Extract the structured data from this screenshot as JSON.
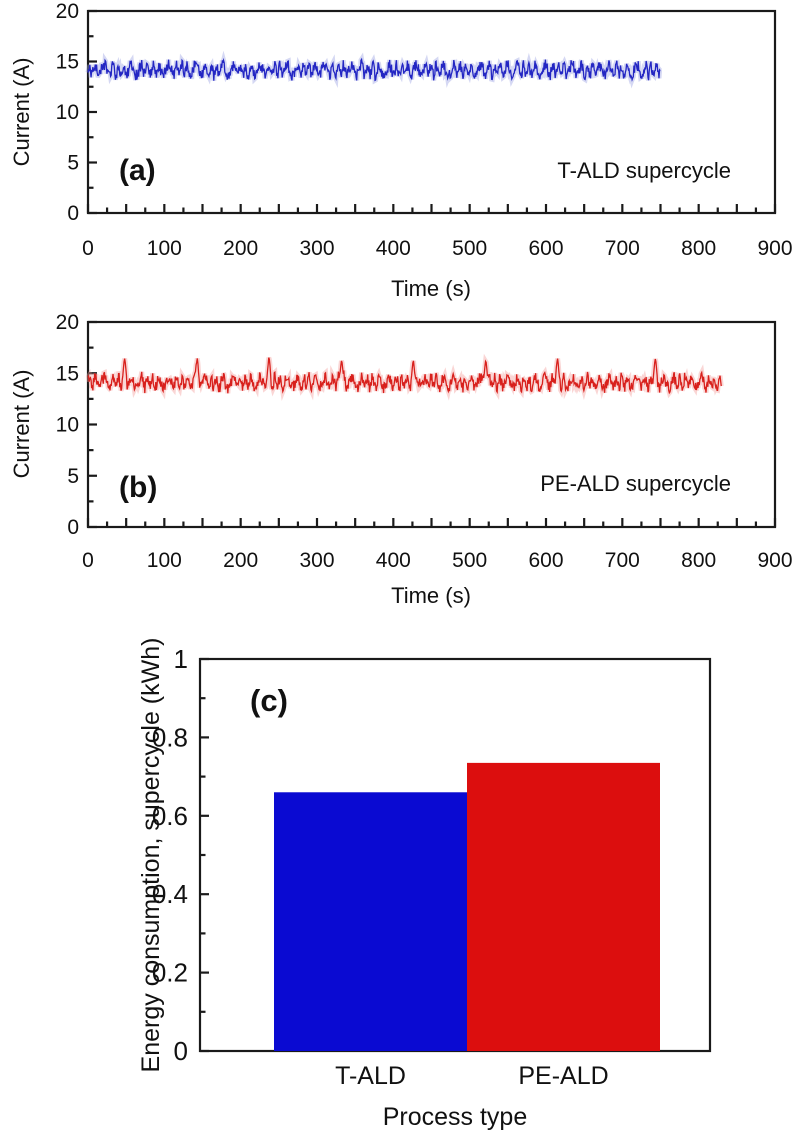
{
  "figure": {
    "background": "#ffffff",
    "axis_color": "#1a1a1a",
    "description": "Three-panel figure: current vs time traces for T-ALD (a) and PE-ALD (b) supercycles, and bar chart (c) of energy consumption per supercycle"
  },
  "chart_data": [
    {
      "id": "a",
      "type": "line",
      "panel_label": "(a)",
      "annotation": "T-ALD supercycle",
      "xlabel": "Time (s)",
      "ylabel": "Current (A)",
      "xlim": [
        0,
        900
      ],
      "ylim": [
        0,
        20
      ],
      "x_label_ticks": [
        0,
        100,
        200,
        300,
        400,
        500,
        600,
        700,
        800,
        900
      ],
      "x_tick_major_step": 50,
      "x_tick_minor_step": 25,
      "y_label_ticks": [
        0,
        5,
        10,
        15,
        20
      ],
      "y_tick_major_step": 5,
      "y_tick_minor_step": 2.5,
      "grid": false,
      "legend": null,
      "series": [
        {
          "name": "T-ALD supercycle current",
          "color": "#2326c3",
          "halo_color": "#9aa2e2",
          "t_start_s": 0,
          "t_end_s": 750,
          "sample_step_s": 0.8,
          "baseline_A": 14.15,
          "fluctuation_min_A": 13.1,
          "fluctuation_max_A": 15.3,
          "spike_times_s": [],
          "spike_peak_A": null,
          "seed": 11
        }
      ]
    },
    {
      "id": "b",
      "type": "line",
      "panel_label": "(b)",
      "annotation": "PE-ALD supercycle",
      "xlabel": "Time (s)",
      "ylabel": "Current (A)",
      "xlim": [
        0,
        900
      ],
      "ylim": [
        0,
        20
      ],
      "x_label_ticks": [
        0,
        100,
        200,
        300,
        400,
        500,
        600,
        700,
        800,
        900
      ],
      "x_tick_major_step": 50,
      "x_tick_minor_step": 25,
      "y_label_ticks": [
        0,
        5,
        10,
        15,
        20
      ],
      "y_tick_major_step": 5,
      "y_tick_minor_step": 2.5,
      "grid": false,
      "legend": null,
      "series": [
        {
          "name": "PE-ALD supercycle current",
          "color": "#d8201c",
          "halo_color": "#f29e9b",
          "t_start_s": 0,
          "t_end_s": 830,
          "sample_step_s": 0.8,
          "baseline_A": 14.1,
          "fluctuation_min_A": 13.0,
          "fluctuation_max_A": 15.3,
          "spike_times_s": [
            48,
            143,
            237,
            332,
            426,
            521,
            615,
            743
          ],
          "spike_peak_A": 16.4,
          "seed": 29
        }
      ]
    },
    {
      "id": "c",
      "type": "bar",
      "panel_label": "(c)",
      "xlabel": "Process type",
      "ylabel": "Energy consumption, supercycle (kWh)",
      "categories": [
        "T-ALD",
        "PE-ALD"
      ],
      "values": [
        0.66,
        0.735
      ],
      "bar_colors": [
        "#0a0ad2",
        "#dc0e0e"
      ],
      "ylim": [
        0,
        1
      ],
      "y_label_ticks": [
        0,
        0.2,
        0.4,
        0.6,
        0.8,
        1
      ],
      "y_tick_major_step": 0.2,
      "y_tick_minor_step": 0.1,
      "grid": false,
      "legend": null
    }
  ]
}
